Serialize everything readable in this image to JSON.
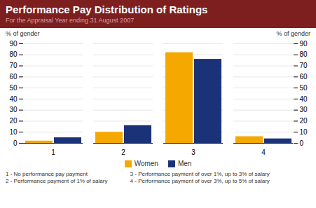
{
  "chart_data": {
    "type": "bar",
    "title": "Performance Pay Distribution of Ratings",
    "subtitle": "For the Appraisal Year ending 31 August 2007",
    "ylabel": "% of gender",
    "categories": [
      "1",
      "2",
      "3",
      "4"
    ],
    "series": [
      {
        "name": "Women",
        "color": "#f5a800",
        "values": [
          2,
          10,
          82,
          6
        ]
      },
      {
        "name": "Men",
        "color": "#1a3278",
        "values": [
          5,
          16,
          76,
          4
        ]
      }
    ],
    "ylim": [
      0,
      90
    ],
    "yticks": [
      0,
      10,
      20,
      30,
      40,
      50,
      60,
      70,
      80,
      90
    ],
    "grid": true,
    "legend": "bottom",
    "annotations": [
      "1 - No performance pay payment",
      "3 - Performance payment of over 1%, up to 3% of salary",
      "2 - Performance payment of 1% of salary",
      "4 - Performance payment of over 3%, up to 5% of salary"
    ]
  }
}
